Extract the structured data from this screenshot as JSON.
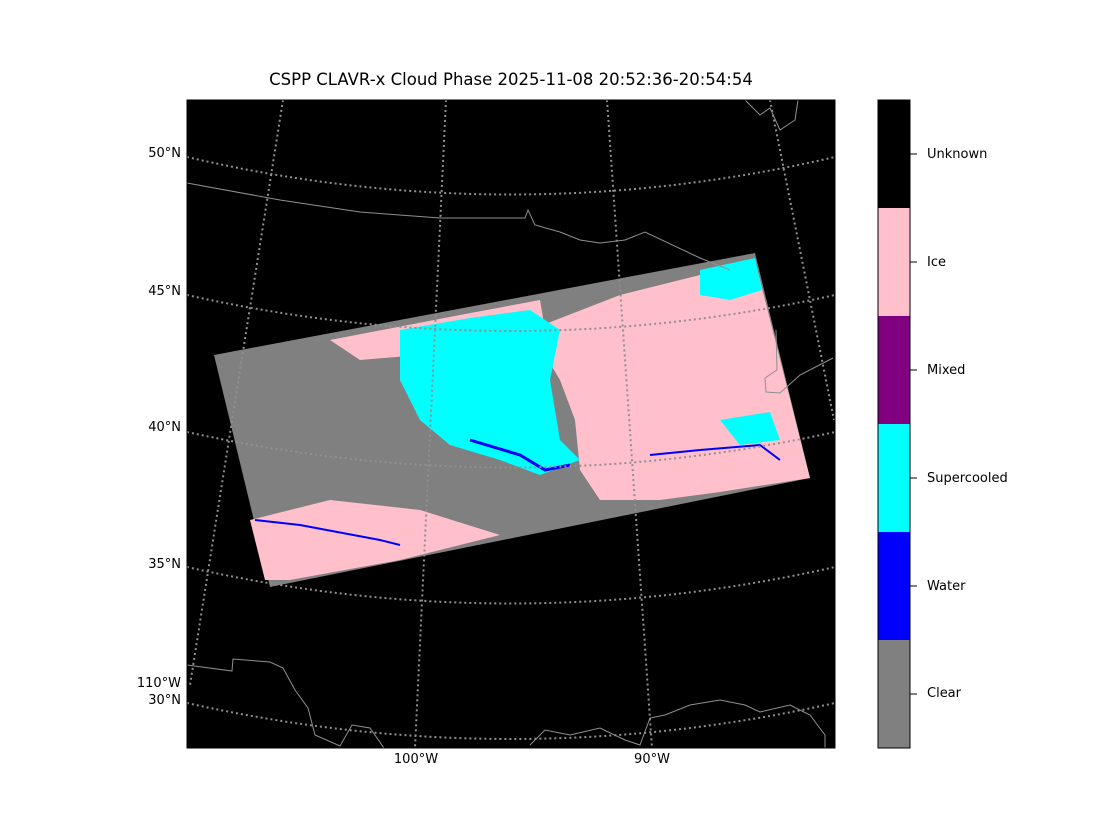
{
  "title": "CSPP CLAVR-x Cloud Phase 2025-11-08 20:52:36-20:54:54",
  "map": {
    "lat_labels": [
      "50°N",
      "45°N",
      "40°N",
      "35°N",
      "30°N"
    ],
    "lon_labels": [
      "110°W",
      "100°W",
      "90°W"
    ],
    "background_color": "#000000",
    "gridline_color": "#808080"
  },
  "colorbar": {
    "categories": [
      {
        "label": "Unknown",
        "color": "#000000"
      },
      {
        "label": "Ice",
        "color": "#ffc0cb"
      },
      {
        "label": "Mixed",
        "color": "#800080"
      },
      {
        "label": "Supercooled",
        "color": "#00ffff"
      },
      {
        "label": "Water",
        "color": "#0000ff"
      },
      {
        "label": "Clear",
        "color": "#808080"
      }
    ]
  }
}
